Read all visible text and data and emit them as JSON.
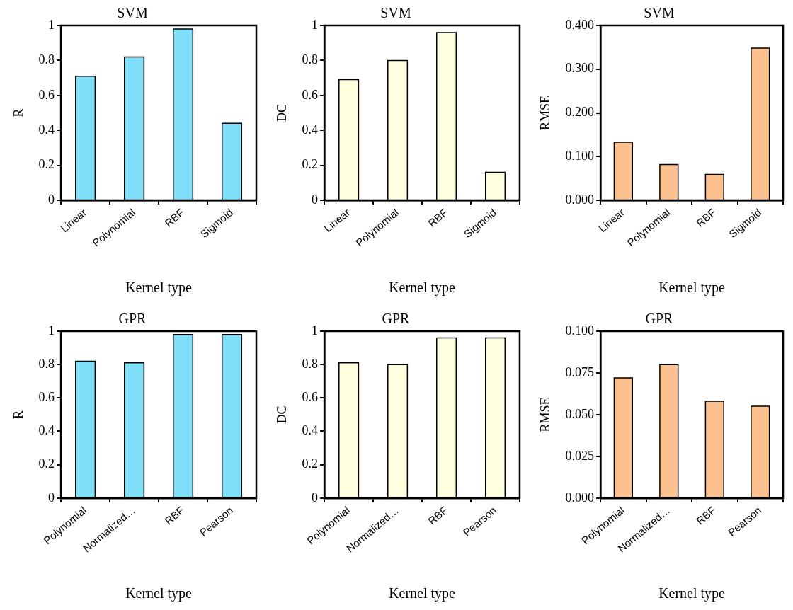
{
  "chart_data": [
    {
      "type": "bar",
      "title": "SVM",
      "xlabel": "Kernel type",
      "ylabel": "R",
      "categories": [
        "Linear",
        "Polynomial",
        "RBF",
        "Sigmoid"
      ],
      "values": [
        0.71,
        0.82,
        0.98,
        0.44
      ],
      "color": "#80dff8",
      "ylim": [
        0,
        1
      ],
      "yticks": [
        0,
        0.2,
        0.4,
        0.6,
        0.8,
        1
      ]
    },
    {
      "type": "bar",
      "title": "SVM",
      "xlabel": "Kernel type",
      "ylabel": "DC",
      "categories": [
        "Linear",
        "Polynomial",
        "RBF",
        "Sigmoid"
      ],
      "values": [
        0.69,
        0.8,
        0.96,
        0.16
      ],
      "color": "#ffffe0",
      "ylim": [
        0,
        1
      ],
      "yticks": [
        0,
        0.2,
        0.4,
        0.6,
        0.8,
        1
      ]
    },
    {
      "type": "bar",
      "title": "SVM",
      "xlabel": "Kernel type",
      "ylabel": "RMSE",
      "categories": [
        "Linear",
        "Polynomial",
        "RBF",
        "Sigmoid"
      ],
      "values": [
        0.133,
        0.082,
        0.059,
        0.348
      ],
      "color": "#fdc08f",
      "ylim": [
        0,
        0.4
      ],
      "yticks": [
        {
          "value": 0,
          "label": "0.000"
        },
        {
          "value": 0.1,
          "label": "0.100"
        },
        {
          "value": 0.2,
          "label": "0.200"
        },
        {
          "value": 0.3,
          "label": "0.300"
        },
        {
          "value": 0.4,
          "label": "0.400"
        }
      ]
    },
    {
      "type": "bar",
      "title": "GPR",
      "xlabel": "Kernel type",
      "ylabel": "R",
      "categories": [
        "Polynomial",
        "Normalized…",
        "RBF",
        "Pearson"
      ],
      "values": [
        0.82,
        0.81,
        0.98,
        0.98
      ],
      "color": "#80dff8",
      "ylim": [
        0,
        1
      ],
      "yticks": [
        0,
        0.2,
        0.4,
        0.6,
        0.8,
        1
      ]
    },
    {
      "type": "bar",
      "title": "GPR",
      "xlabel": "Kernel type",
      "ylabel": "DC",
      "categories": [
        "Polynomial",
        "Normalized…",
        "RBF",
        "Pearson"
      ],
      "values": [
        0.81,
        0.8,
        0.96,
        0.96
      ],
      "color": "#ffffe0",
      "ylim": [
        0,
        1
      ],
      "yticks": [
        0,
        0.2,
        0.4,
        0.6,
        0.8,
        1
      ]
    },
    {
      "type": "bar",
      "title": "GPR",
      "xlabel": "Kernel type",
      "ylabel": "RMSE",
      "categories": [
        "Polynomial",
        "Normalized…",
        "RBF",
        "Pearson"
      ],
      "values": [
        0.072,
        0.08,
        0.058,
        0.055
      ],
      "color": "#fdc08f",
      "ylim": [
        0,
        0.1
      ],
      "yticks": [
        {
          "value": 0,
          "label": "0.000"
        },
        {
          "value": 0.025,
          "label": "0.025"
        },
        {
          "value": 0.05,
          "label": "0.050"
        },
        {
          "value": 0.075,
          "label": "0.075"
        },
        {
          "value": 0.1,
          "label": "0.100"
        }
      ]
    }
  ]
}
